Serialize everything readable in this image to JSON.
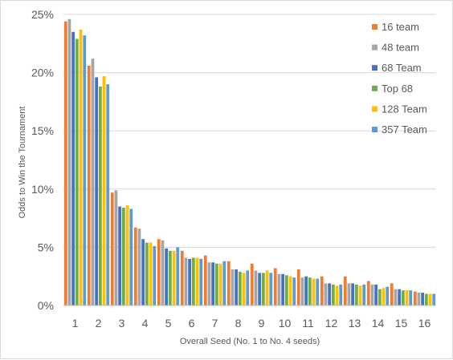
{
  "chart_data": {
    "type": "bar",
    "title": "",
    "xlabel": "Overall Seed (No. 1 to No. 4 seeds)",
    "ylabel": "Odds to Win the Tournament",
    "ylim": [
      0,
      25
    ],
    "yticks": [
      0,
      5,
      10,
      15,
      20,
      25
    ],
    "ytick_labels": [
      "0%",
      "5%",
      "10%",
      "15%",
      "20%",
      "25%"
    ],
    "categories": [
      "1",
      "2",
      "3",
      "4",
      "5",
      "6",
      "7",
      "8",
      "9",
      "10",
      "11",
      "12",
      "13",
      "14",
      "15",
      "16"
    ],
    "grid": true,
    "legend_position": "right",
    "series": [
      {
        "name": "16 team",
        "color": "#ED7D31",
        "values": [
          24.4,
          20.6,
          9.7,
          6.7,
          5.7,
          4.7,
          4.3,
          3.8,
          3.6,
          3.2,
          3.1,
          2.5,
          2.5,
          2.1,
          1.9,
          1.2
        ]
      },
      {
        "name": "48 team",
        "color": "#A5A5A5",
        "values": [
          24.6,
          21.2,
          9.9,
          6.6,
          5.6,
          4.1,
          3.7,
          3.1,
          3.0,
          2.7,
          2.4,
          1.9,
          1.9,
          1.8,
          1.4,
          1.1
        ]
      },
      {
        "name": "68 Team",
        "color": "#4472C4",
        "values": [
          23.5,
          19.6,
          8.5,
          5.7,
          4.9,
          4.0,
          3.7,
          3.1,
          2.8,
          2.7,
          2.5,
          1.9,
          1.9,
          1.8,
          1.4,
          1.1
        ]
      },
      {
        "name": "Top 68",
        "color": "#70AD47",
        "values": [
          22.9,
          18.8,
          8.4,
          5.4,
          4.7,
          4.1,
          3.6,
          2.9,
          2.8,
          2.6,
          2.4,
          1.8,
          1.8,
          1.4,
          1.3,
          1.0
        ]
      },
      {
        "name": "128 Team",
        "color": "#FFC000",
        "values": [
          23.7,
          19.7,
          8.6,
          5.4,
          4.7,
          4.1,
          3.6,
          2.8,
          3.0,
          2.5,
          2.3,
          1.7,
          1.7,
          1.5,
          1.3,
          1.0
        ]
      },
      {
        "name": "357 Team",
        "color": "#5B9BD5",
        "values": [
          23.2,
          19.0,
          8.3,
          5.1,
          5.0,
          4.0,
          3.8,
          3.0,
          2.8,
          2.4,
          2.3,
          1.8,
          1.8,
          1.6,
          1.3,
          1.0
        ]
      }
    ]
  }
}
